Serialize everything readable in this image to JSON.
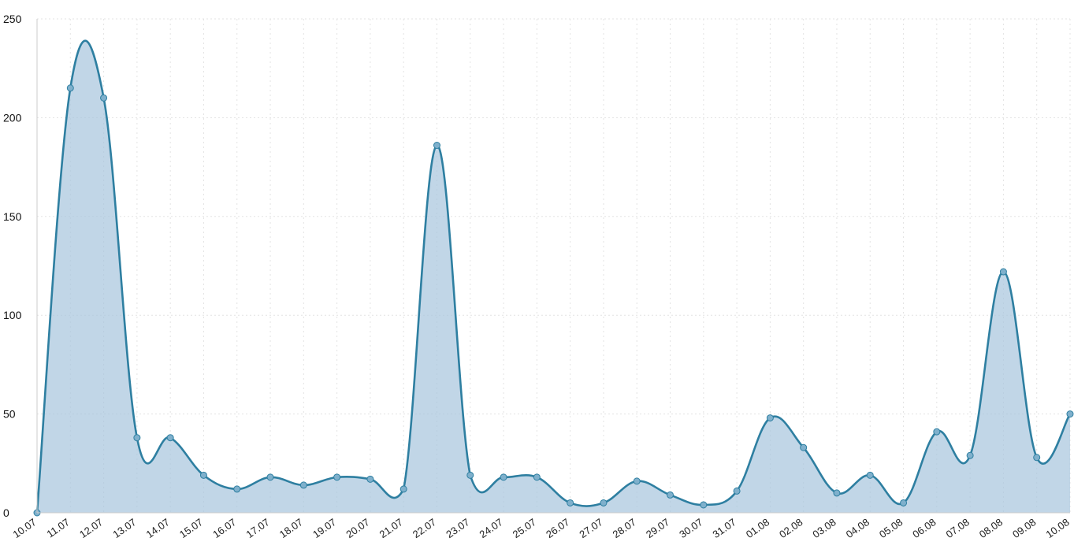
{
  "chart_data": {
    "type": "area",
    "title": "",
    "xlabel": "",
    "ylabel": "",
    "ylim": [
      0,
      250
    ],
    "y_ticks": [
      "0",
      "50",
      "100",
      "150",
      "200",
      "250"
    ],
    "grid": true,
    "legend": "none",
    "categories": [
      "10.07",
      "11.07",
      "12.07",
      "13.07",
      "14.07",
      "15.07",
      "16.07",
      "17.07",
      "18.07",
      "19.07",
      "20.07",
      "21.07",
      "22.07",
      "23.07",
      "24.07",
      "25.07",
      "26.07",
      "27.07",
      "28.07",
      "29.07",
      "30.07",
      "31.07",
      "01.08",
      "02.08",
      "03.08",
      "04.08",
      "05.08",
      "06.08",
      "07.08",
      "08.08",
      "09.08",
      "10.08"
    ],
    "series": [
      {
        "values": [
          0,
          215,
          210,
          38,
          38,
          19,
          12,
          18,
          14,
          18,
          17,
          12,
          186,
          19,
          18,
          18,
          5,
          5,
          16,
          9,
          4,
          11,
          48,
          33,
          10,
          19,
          5,
          41,
          29,
          122,
          28,
          50
        ]
      }
    ],
    "colors": {
      "line": "#2e7fa1",
      "fill": "#a9c6de",
      "marker": "#7fb0cc",
      "grid": "#e3e3e3",
      "axis": "#cccccc"
    }
  }
}
